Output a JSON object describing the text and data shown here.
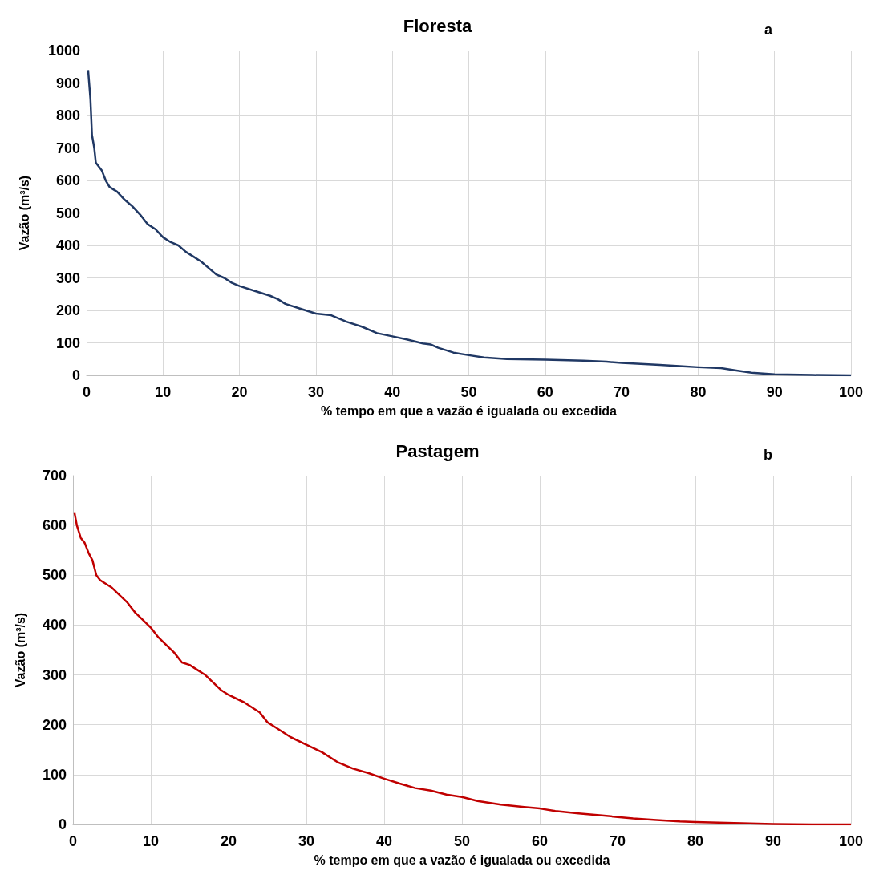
{
  "chart_data": [
    {
      "type": "line",
      "title": "Floresta",
      "xlabel": "% tempo em que a vazão é igualada ou excedida",
      "ylabel": "Vazão (m³/s)",
      "annotations": [
        "a"
      ],
      "x": [
        0.2,
        0.5,
        0.7,
        1,
        1.2,
        2,
        2.5,
        3,
        4,
        5,
        6,
        7,
        8,
        9,
        10,
        11,
        12,
        13,
        14,
        15,
        16,
        17,
        18,
        19,
        20,
        22,
        24,
        25,
        26,
        28,
        30,
        32,
        34,
        36,
        38,
        40,
        42,
        44,
        45,
        46,
        48,
        50,
        52,
        55,
        60,
        65,
        68,
        70,
        75,
        78,
        80,
        83,
        85,
        87,
        90,
        95,
        100
      ],
      "series": [
        {
          "color": "#203864",
          "values": [
            940,
            850,
            740,
            700,
            655,
            630,
            600,
            580,
            565,
            540,
            520,
            495,
            465,
            450,
            425,
            410,
            400,
            380,
            365,
            350,
            330,
            310,
            300,
            285,
            275,
            260,
            245,
            235,
            220,
            205,
            190,
            185,
            165,
            150,
            130,
            120,
            110,
            98,
            95,
            85,
            70,
            62,
            55,
            50,
            48,
            45,
            42,
            38,
            32,
            28,
            25,
            22,
            15,
            8,
            3,
            1,
            0
          ]
        }
      ],
      "xlim": [
        0,
        100
      ],
      "xticks": [
        0,
        10,
        20,
        30,
        40,
        50,
        60,
        70,
        80,
        90,
        100
      ],
      "ylim": [
        0,
        1000
      ],
      "yticks": [
        0,
        100,
        200,
        300,
        400,
        500,
        600,
        700,
        800,
        900,
        1000
      ],
      "grid": true,
      "marker": "none",
      "line_style": "solid"
    },
    {
      "type": "line",
      "title": "Pastagem",
      "xlabel": "% tempo em que a vazão é igualada ou excedida",
      "ylabel": "Vazão (m³/s)",
      "annotations": [
        "b"
      ],
      "x": [
        0.2,
        0.5,
        1,
        1.5,
        2,
        2.5,
        3,
        3.5,
        5,
        6,
        7,
        8,
        9,
        10,
        11,
        12,
        13,
        14,
        15,
        16,
        17,
        18,
        19,
        20,
        22,
        23,
        24,
        25,
        26,
        28,
        30,
        32,
        34,
        36,
        38,
        40,
        42,
        44,
        46,
        48,
        50,
        52,
        55,
        58,
        60,
        62,
        65,
        68,
        70,
        72,
        75,
        78,
        80,
        85,
        90,
        95,
        100
      ],
      "series": [
        {
          "color": "#c00000",
          "values": [
            625,
            600,
            575,
            565,
            545,
            530,
            500,
            490,
            475,
            460,
            445,
            425,
            410,
            395,
            375,
            360,
            345,
            325,
            320,
            310,
            300,
            285,
            270,
            260,
            245,
            235,
            225,
            205,
            195,
            175,
            160,
            145,
            125,
            112,
            103,
            92,
            82,
            73,
            68,
            60,
            55,
            47,
            40,
            35,
            32,
            27,
            22,
            18,
            15,
            12,
            9,
            6,
            5,
            3,
            1,
            0,
            0
          ]
        }
      ],
      "xlim": [
        0,
        100
      ],
      "xticks": [
        0,
        10,
        20,
        30,
        40,
        50,
        60,
        70,
        80,
        90,
        100
      ],
      "ylim": [
        0,
        700
      ],
      "yticks": [
        0,
        100,
        200,
        300,
        400,
        500,
        600,
        700
      ],
      "grid": true,
      "marker": "none",
      "line_style": "solid"
    }
  ]
}
